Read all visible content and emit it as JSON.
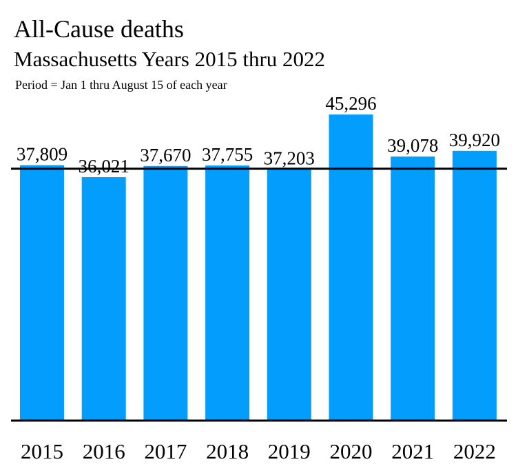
{
  "chart_data": {
    "type": "bar",
    "title": "All-Cause deaths",
    "subtitle": "Massachusetts Years 2015 thru 2022",
    "note": "Period = Jan 1 thru August 15 of each year",
    "categories": [
      "2015",
      "2016",
      "2017",
      "2018",
      "2019",
      "2020",
      "2021",
      "2022"
    ],
    "values": [
      37809,
      36021,
      37670,
      37755,
      37203,
      45296,
      39078,
      39920
    ],
    "value_labels": [
      "37,809",
      "36,021",
      "37,670",
      "37,755",
      "37,203",
      "45,296",
      "39,078",
      "39,920"
    ],
    "reference_line": 37288,
    "ylim": [
      0,
      49000
    ],
    "bar_color": "#039dfd",
    "line_color": "#000000",
    "grid": false,
    "legend": "none",
    "xlabel": "",
    "ylabel": ""
  }
}
